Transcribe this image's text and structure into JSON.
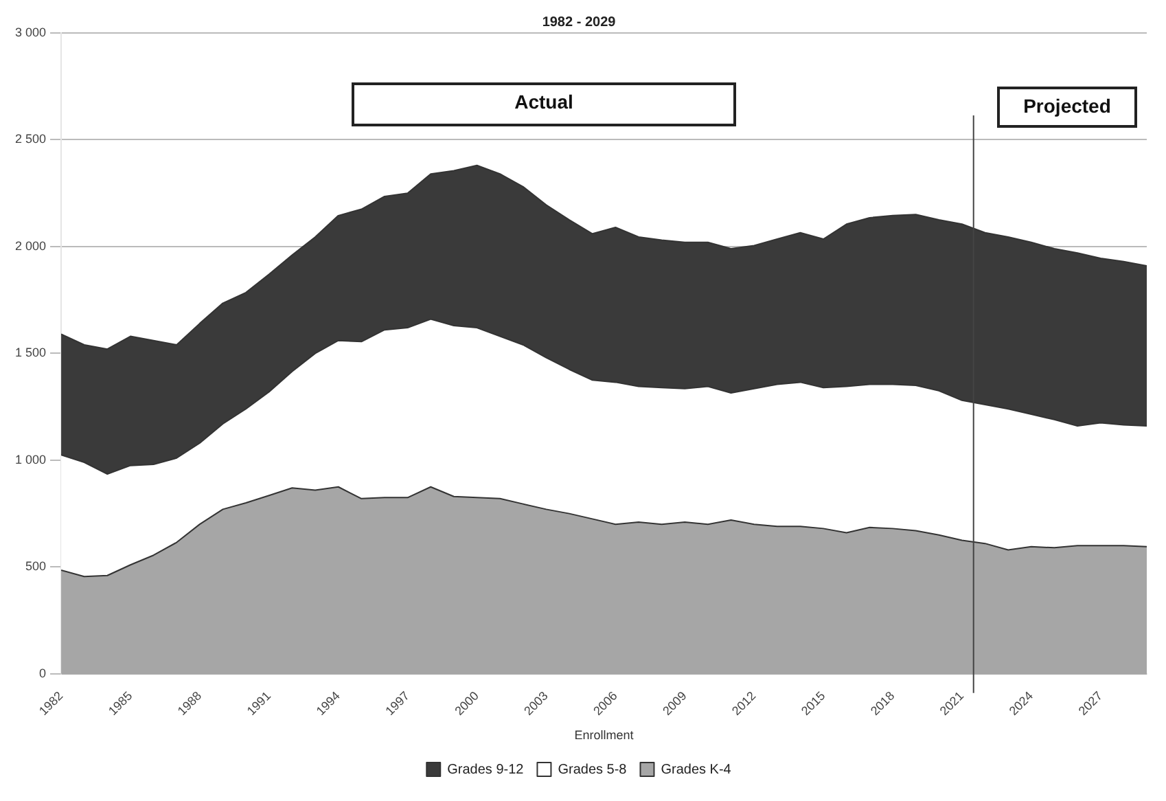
{
  "chart_data": {
    "type": "area",
    "title": "1982 - 2029",
    "xlabel": "Enrollment",
    "stacked": true,
    "x": [
      1982,
      1983,
      1984,
      1985,
      1986,
      1987,
      1988,
      1989,
      1990,
      1991,
      1992,
      1993,
      1994,
      1995,
      1996,
      1997,
      1998,
      1999,
      2000,
      2001,
      2002,
      2003,
      2004,
      2005,
      2006,
      2007,
      2008,
      2009,
      2010,
      2011,
      2012,
      2013,
      2014,
      2015,
      2016,
      2017,
      2018,
      2019,
      2020,
      2021,
      2022,
      2023,
      2024,
      2025,
      2026,
      2027,
      2028,
      2029
    ],
    "series": [
      {
        "name": "Grades K-4",
        "color": "#a6a6a6",
        "values": [
          485,
          455,
          460,
          510,
          555,
          615,
          700,
          770,
          800,
          835,
          870,
          860,
          875,
          820,
          825,
          825,
          875,
          830,
          825,
          820,
          795,
          770,
          750,
          725,
          700,
          710,
          700,
          710,
          700,
          720,
          700,
          690,
          690,
          680,
          660,
          685,
          680,
          670,
          650,
          625,
          610,
          580,
          595,
          590,
          600,
          600,
          600,
          595
        ]
      },
      {
        "name": "Grades 5-8",
        "color": "#ffffff",
        "values": [
          540,
          535,
          475,
          465,
          425,
          395,
          380,
          400,
          440,
          485,
          545,
          640,
          685,
          735,
          785,
          795,
          785,
          800,
          795,
          760,
          745,
          710,
          675,
          650,
          665,
          635,
          640,
          625,
          645,
          595,
          635,
          665,
          675,
          660,
          685,
          670,
          675,
          680,
          675,
          655,
          650,
          660,
          620,
          600,
          560,
          575,
          565,
          565
        ]
      },
      {
        "name": "Grades 9-12",
        "color": "#3a3a3a",
        "values": [
          565,
          550,
          585,
          605,
          580,
          530,
          560,
          565,
          545,
          550,
          545,
          545,
          585,
          620,
          625,
          630,
          680,
          725,
          760,
          760,
          740,
          715,
          700,
          685,
          725,
          700,
          690,
          685,
          675,
          675,
          670,
          680,
          700,
          695,
          760,
          780,
          790,
          800,
          800,
          825,
          805,
          805,
          805,
          800,
          810,
          770,
          765,
          750
        ]
      }
    ],
    "xlim": [
      1982,
      2029
    ],
    "xticks": [
      1982,
      1985,
      1988,
      1991,
      1994,
      1997,
      2000,
      2003,
      2006,
      2009,
      2012,
      2015,
      2018,
      2021,
      2024,
      2027
    ],
    "ylim": [
      0,
      3000
    ],
    "yticks": [
      0,
      500,
      {
        "value": 1000,
        "label": "1 000"
      },
      {
        "value": 1500,
        "label": "1 500"
      },
      {
        "value": 2000,
        "label": "2 000"
      },
      {
        "value": 2500,
        "label": "2 500"
      },
      {
        "value": 3000,
        "label": "3 000"
      }
    ],
    "grid": "y",
    "legend": "bottom",
    "ref_lines": [
      {
        "axis": "x",
        "value": 2021.5,
        "color": "#444444"
      }
    ],
    "annotations": [
      "Actual",
      "Projected"
    ]
  }
}
